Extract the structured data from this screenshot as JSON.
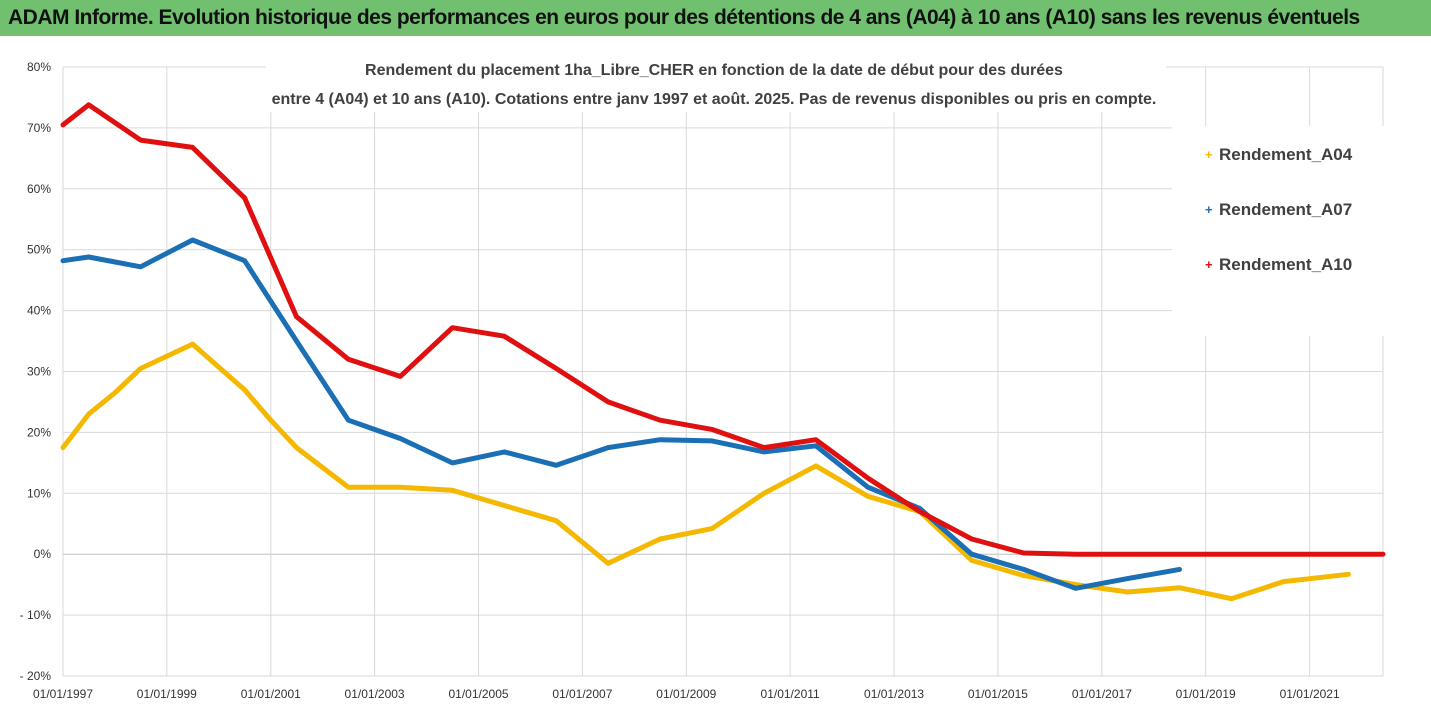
{
  "header": {
    "title": "ADAM Informe. Evolution historique des performances en euros pour des détentions de 4 ans (A04) à 10 ans (A10) sans les revenus éventuels"
  },
  "colors": {
    "header_bg": "#70c06f",
    "accent_corner": "#f2c200",
    "grid": "#d9d9d9",
    "zero_line": "#bfbfbf"
  },
  "chart_data": {
    "type": "line",
    "title_lines": [
      "Rendement du placement 1ha_Libre_CHER en fonction de la date de début pour des durées",
      "entre 4 (A04) et 10 ans (A10). Cotations entre janv 1997 et août. 2025. Pas de revenus disponibles ou pris en compte."
    ],
    "xlabel": "",
    "ylabel": "",
    "x_ticks": [
      "01/01/1997",
      "01/01/1999",
      "01/01/2001",
      "01/01/2003",
      "01/01/2005",
      "01/01/2007",
      "01/01/2009",
      "01/01/2011",
      "01/01/2013",
      "01/01/2015",
      "01/01/2017",
      "01/01/2019",
      "01/01/2021"
    ],
    "y_ticks": [
      "80%",
      "70%",
      "60%",
      "50%",
      "40%",
      "30%",
      "20%",
      "10%",
      "0%",
      "- 10%",
      "- 20%"
    ],
    "xlim": [
      "1997-01-01",
      "2022-06-01"
    ],
    "ylim": [
      -20,
      80
    ],
    "grid": true,
    "legend_position": "top-right",
    "series": [
      {
        "name": "Rendement_A04",
        "color": "#f5b800",
        "points": [
          [
            "1997-01-01",
            17.5
          ],
          [
            "1997-07-01",
            23
          ],
          [
            "1998-01-01",
            26.5
          ],
          [
            "1998-07-01",
            30.5
          ],
          [
            "1999-07-01",
            34.5
          ],
          [
            "2000-07-01",
            27
          ],
          [
            "2001-01-01",
            22
          ],
          [
            "2001-07-01",
            17.5
          ],
          [
            "2002-07-01",
            11
          ],
          [
            "2003-07-01",
            11
          ],
          [
            "2004-07-01",
            10.5
          ],
          [
            "2005-07-01",
            8
          ],
          [
            "2006-07-01",
            5.5
          ],
          [
            "2007-07-01",
            -1.5
          ],
          [
            "2008-07-01",
            2.5
          ],
          [
            "2009-07-01",
            4.2
          ],
          [
            "2010-07-01",
            10
          ],
          [
            "2011-07-01",
            14.5
          ],
          [
            "2012-07-01",
            9.5
          ],
          [
            "2013-07-01",
            7
          ],
          [
            "2014-07-01",
            -1
          ],
          [
            "2015-07-01",
            -3.5
          ],
          [
            "2016-07-01",
            -5
          ],
          [
            "2017-07-01",
            -6.2
          ],
          [
            "2018-07-01",
            -5.5
          ],
          [
            "2019-07-01",
            -7.3
          ],
          [
            "2020-07-01",
            -4.5
          ],
          [
            "2021-10-01",
            -3.3
          ]
        ]
      },
      {
        "name": "Rendement_A07",
        "color": "#1a6fb5",
        "points": [
          [
            "1997-01-01",
            48.2
          ],
          [
            "1997-07-01",
            48.8
          ],
          [
            "1998-07-01",
            47.2
          ],
          [
            "1999-07-01",
            51.6
          ],
          [
            "2000-07-01",
            48.2
          ],
          [
            "2001-07-01",
            35
          ],
          [
            "2002-07-01",
            22
          ],
          [
            "2003-07-01",
            19
          ],
          [
            "2004-07-01",
            15
          ],
          [
            "2005-07-01",
            16.8
          ],
          [
            "2006-07-01",
            14.6
          ],
          [
            "2007-07-01",
            17.5
          ],
          [
            "2008-07-01",
            18.8
          ],
          [
            "2009-07-01",
            18.6
          ],
          [
            "2010-07-01",
            16.8
          ],
          [
            "2011-07-01",
            17.8
          ],
          [
            "2012-07-01",
            11
          ],
          [
            "2013-07-01",
            7.5
          ],
          [
            "2014-07-01",
            0
          ],
          [
            "2015-07-01",
            -2.5
          ],
          [
            "2016-07-01",
            -5.6
          ],
          [
            "2017-07-01",
            -4
          ],
          [
            "2018-07-01",
            -2.5
          ]
        ]
      },
      {
        "name": "Rendement_A10",
        "color": "#e01010",
        "points": [
          [
            "1997-01-01",
            70.5
          ],
          [
            "1997-07-01",
            73.8
          ],
          [
            "1998-07-01",
            68
          ],
          [
            "1999-07-01",
            66.8
          ],
          [
            "2000-07-01",
            58.5
          ],
          [
            "2001-07-01",
            39
          ],
          [
            "2002-07-01",
            32
          ],
          [
            "2003-07-01",
            29.2
          ],
          [
            "2004-07-01",
            37.2
          ],
          [
            "2005-07-01",
            35.8
          ],
          [
            "2006-07-01",
            30.5
          ],
          [
            "2007-07-01",
            25
          ],
          [
            "2008-07-01",
            22
          ],
          [
            "2009-07-01",
            20.5
          ],
          [
            "2010-07-01",
            17.5
          ],
          [
            "2011-07-01",
            18.8
          ],
          [
            "2012-07-01",
            12.5
          ],
          [
            "2013-07-01",
            7
          ],
          [
            "2014-07-01",
            2.5
          ],
          [
            "2015-07-01",
            0.2
          ],
          [
            "2016-07-01",
            0
          ],
          [
            "2022-06-01",
            0
          ]
        ]
      }
    ]
  }
}
